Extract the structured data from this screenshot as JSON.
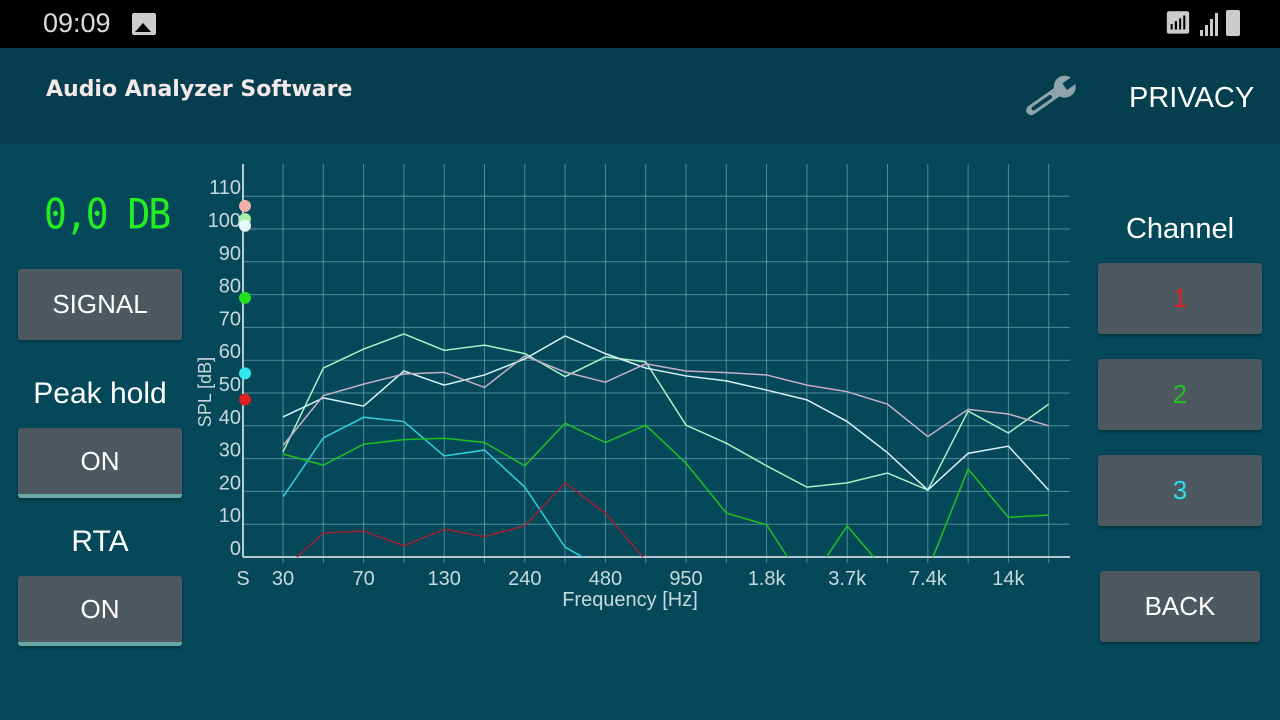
{
  "status_bar": {
    "time": "09:09",
    "icons": [
      "image-icon",
      "wifi-icon",
      "signal-icon",
      "battery-icon"
    ]
  },
  "header": {
    "title": "Audio Analyzer Software",
    "settings_icon": "wrench-icon",
    "privacy_label": "PRIVACY"
  },
  "left_panel": {
    "level_display": "0,0 DB",
    "level_color": "#22ee22",
    "signal_label": "SIGNAL",
    "peak_hold_label": "Peak hold",
    "peak_hold_value": "ON",
    "rta_label": "RTA",
    "rta_value": "ON"
  },
  "right_panel": {
    "channel_label": "Channel",
    "channels": [
      {
        "label": "1",
        "color": "#e02020"
      },
      {
        "label": "2",
        "color": "#20c020"
      },
      {
        "label": "3",
        "color": "#30e0e8"
      }
    ],
    "back_label": "BACK"
  },
  "chart_data": {
    "type": "line",
    "xlabel": "Frequency [Hz]",
    "ylabel": "SPL [dB]",
    "ylim": [
      0,
      110
    ],
    "grid": true,
    "y_ticks": [
      "0",
      "10",
      "20",
      "30",
      "40",
      "50",
      "60",
      "70",
      "80",
      "90",
      "100",
      "110"
    ],
    "x_tick_labels": [
      {
        "band": -1,
        "label": "S"
      },
      {
        "band": 0,
        "label": "30"
      },
      {
        "band": 2,
        "label": "70"
      },
      {
        "band": 4,
        "label": "130"
      },
      {
        "band": 6,
        "label": "240"
      },
      {
        "band": 8,
        "label": "480"
      },
      {
        "band": 10,
        "label": "950"
      },
      {
        "band": 12,
        "label": "1.8k"
      },
      {
        "band": 14,
        "label": "3.7k"
      },
      {
        "band": 16,
        "label": "7.4k"
      },
      {
        "band": 18,
        "label": "14k"
      }
    ],
    "series": [
      {
        "color": "#a8f0c8",
        "values": [
          32,
          57.6,
          63.4,
          68,
          63,
          64.6,
          62,
          55,
          61,
          59.5,
          40.2,
          34.7,
          27.8,
          21.3,
          22.6,
          25.6,
          20.4,
          44.5,
          37.8,
          46.6
        ]
      },
      {
        "color": "#d8f4f4",
        "values": [
          42.7,
          48.5,
          46,
          56.7,
          52.4,
          55.5,
          60.4,
          67.4,
          62,
          57.6,
          55.2,
          53.7,
          50.9,
          47.9,
          41.3,
          31.8,
          20.4,
          31.6,
          33.8,
          20.4
        ]
      },
      {
        "color": "#c8b0c4",
        "values": [
          34,
          49.2,
          52.7,
          55.8,
          56.3,
          51.7,
          61.3,
          56.4,
          53.3,
          58.9,
          56.7,
          56.2,
          55.5,
          52.4,
          50.4,
          46.6,
          36.7,
          45,
          43.6,
          40
        ]
      },
      {
        "color": "#30d0dc",
        "values": [
          18.3,
          36.3,
          42.6,
          41.3,
          30.8,
          32.6,
          21.3,
          3,
          -4,
          null,
          null,
          null,
          null,
          null,
          null,
          null,
          null,
          null,
          null,
          null
        ]
      },
      {
        "color": "#20c020",
        "values": [
          31.4,
          28,
          34.4,
          35.8,
          36.2,
          34.9,
          27.8,
          40.8,
          34.9,
          40.2,
          28.6,
          13.4,
          9.8,
          -9,
          9.5,
          -5,
          -4,
          26.8,
          12.1,
          12.8
        ]
      },
      {
        "color": "#a02030",
        "values": [
          -4,
          7.3,
          7.9,
          3.4,
          8.4,
          6.2,
          9.5,
          22.6,
          13.4,
          -1,
          null,
          null,
          null,
          null,
          null,
          null,
          null,
          null,
          null,
          null
        ]
      }
    ],
    "peak_markers": [
      {
        "value": 107,
        "color": "#f0b0a8"
      },
      {
        "value": 103,
        "color": "#a8f0a8"
      },
      {
        "value": 101,
        "color": "#e8f8f8"
      },
      {
        "value": 79,
        "color": "#20e020"
      },
      {
        "value": 56,
        "color": "#30e8f0"
      },
      {
        "value": 48,
        "color": "#e02020"
      }
    ]
  }
}
